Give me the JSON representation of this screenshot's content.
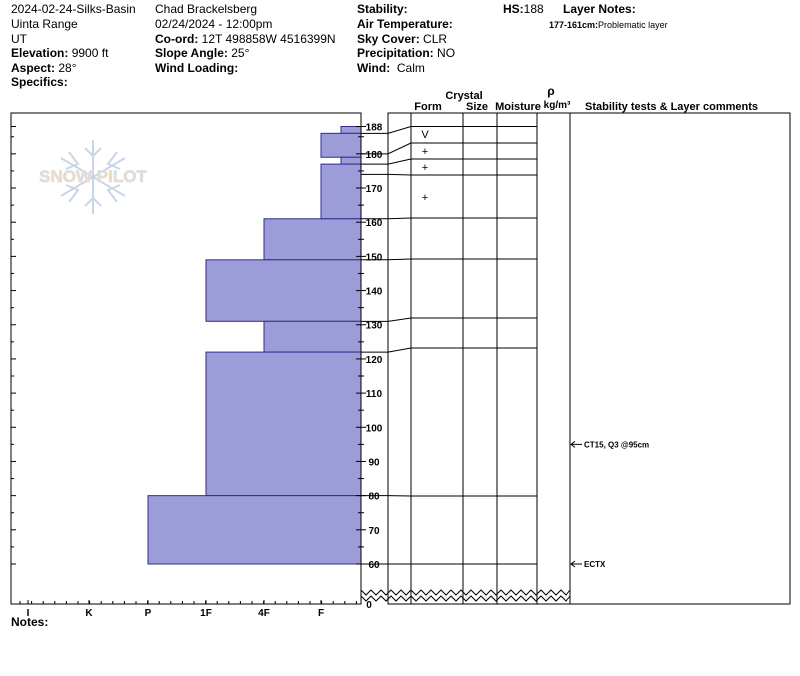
{
  "header": {
    "col1": {
      "name": "2024-02-24-Silks-Basin",
      "range": "Uinta Range",
      "state": "UT",
      "elevation_label": "Elevation:",
      "elevation": "9900 ft",
      "aspect_label": "Aspect:",
      "aspect": "28°",
      "specifics_label": "Specifics:"
    },
    "col2": {
      "observer": "Chad Brackelsberg",
      "datetime": "02/24/2024 - 12:00pm",
      "coord_label": "Co-ord:",
      "coord": "12T 498858W 4516399N",
      "slope_label": "Slope Angle:",
      "slope": "25°",
      "wind_loading_label": "Wind Loading:"
    },
    "col3": {
      "stability_label": "Stability:",
      "air_temp_label": "Air Temperature:",
      "sky_label": "Sky Cover:",
      "sky": "CLR",
      "precip_label": "Precipitation:",
      "precip": "NO",
      "wind_label": "Wind:",
      "wind": "Calm"
    },
    "hs_label": "HS:",
    "hs": "188",
    "layer_notes_label": "Layer Notes:",
    "layer_note_range": "177-161cm:",
    "layer_note_text": "Problematic layer"
  },
  "notes_label": "Notes:",
  "logo_text": "SNOW PILOT",
  "columns": {
    "form": "Form",
    "crystal": "Crystal",
    "size": "Size",
    "moisture": "Moisture",
    "rho": "ρ",
    "density_unit": "kg/m³",
    "stability_comments": "Stability tests & Layer comments"
  },
  "colors": {
    "bar_fill": "#9c9cd8",
    "bar_stroke": "#2e2e8e"
  },
  "chart_data": {
    "type": "bar",
    "orientation": "horizontal",
    "title": "",
    "x_categories": [
      "I",
      "K",
      "P",
      "1F",
      "4F",
      "F"
    ],
    "y_range": [
      60,
      188
    ],
    "y_ticks": [
      60,
      70,
      80,
      90,
      100,
      110,
      120,
      130,
      140,
      150,
      160,
      170,
      180,
      188
    ],
    "y_axis_break_label": "0",
    "hardness_layers": [
      {
        "top": 188,
        "bottom": 186,
        "hardness": "F-"
      },
      {
        "top": 186,
        "bottom": 179,
        "hardness": "F"
      },
      {
        "top": 179,
        "bottom": 177,
        "hardness": "F-"
      },
      {
        "top": 177,
        "bottom": 161,
        "hardness": "F"
      },
      {
        "top": 161,
        "bottom": 149,
        "hardness": "4F"
      },
      {
        "top": 149,
        "bottom": 131,
        "hardness": "1F"
      },
      {
        "top": 131,
        "bottom": 122,
        "hardness": "4F"
      },
      {
        "top": 122,
        "bottom": 80,
        "hardness": "1F"
      },
      {
        "top": 80,
        "bottom": 60,
        "hardness": "P"
      }
    ],
    "layer_boundaries": [
      186,
      180,
      177,
      174,
      161,
      149,
      131,
      122,
      80,
      60
    ],
    "grain_forms": [
      {
        "depth": 186,
        "symbol": "V"
      },
      {
        "depth": 181,
        "symbol": "+"
      },
      {
        "depth": 176,
        "symbol": "+"
      },
      {
        "depth": 167,
        "symbol": "+"
      }
    ],
    "stability_tests": [
      {
        "depth": 95,
        "label": "CT15, Q3 @95cm"
      },
      {
        "depth": 60,
        "label": "ECTX"
      }
    ]
  }
}
